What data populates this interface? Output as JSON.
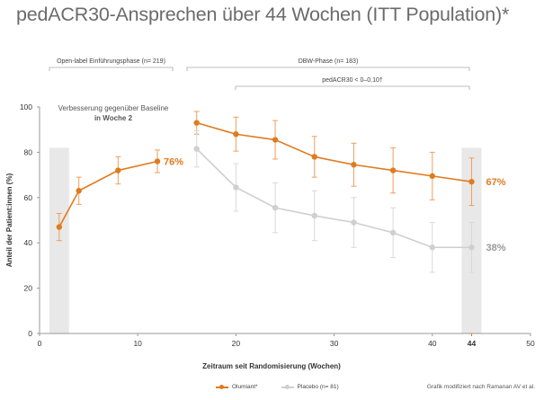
{
  "title": "pedACR30-Ansprechen über 44 Wochen (ITT Population)*",
  "colors": {
    "olumiant": "#e07b20",
    "placebo": "#cfcfcf",
    "shade": "#e8e8e8",
    "axis": "#999999",
    "bracket": "#aaaaaa"
  },
  "brackets": {
    "open_label": "Open-label Einführungsphase (n= 219)",
    "dbw_phase": "DBW-Phase (n= 183)",
    "pvalue": "pedACR30 < 0–0.10†"
  },
  "annotation": {
    "line1": "Verbesserung gegenüber Baseline",
    "line2": "in Woche 2"
  },
  "legend": {
    "olumiant": "Olumiant*",
    "placebo": "Placebo (n= 81)"
  },
  "source": "Grafik modifiziert nach Ramanan AV et al.",
  "chart_data": {
    "type": "line",
    "xlabel": "Zeitraum seit Randomisierung (Wochen)",
    "ylabel": "Anteil der Patient:innen (%)",
    "xlim": [
      0,
      50
    ],
    "ylim": [
      0,
      100
    ],
    "xticks": [
      0,
      10,
      20,
      30,
      40,
      50
    ],
    "yticks": [
      0,
      20,
      40,
      60,
      80,
      100
    ],
    "highlight_tick": {
      "value": 44,
      "label": "44"
    },
    "shaded_x": [
      2,
      44
    ],
    "series": [
      {
        "name": "Olumiant*",
        "phase": "open-label",
        "x": [
          2,
          4,
          8,
          12
        ],
        "y": [
          47,
          63,
          72,
          76
        ],
        "err": [
          6,
          6,
          6,
          5
        ],
        "end_label": "76%"
      },
      {
        "name": "Olumiant*",
        "phase": "dbw",
        "x": [
          16,
          20,
          24,
          28,
          32,
          36,
          40,
          44
        ],
        "y": [
          93,
          88,
          85.5,
          78,
          74.5,
          72,
          69.5,
          67
        ],
        "err": [
          5,
          7.5,
          8.5,
          9,
          9.5,
          10,
          10.5,
          10.5
        ],
        "end_label": "67%"
      },
      {
        "name": "Placebo (n= 81)",
        "phase": "dbw",
        "x": [
          16,
          20,
          24,
          28,
          32,
          36,
          40,
          44
        ],
        "y": [
          81.5,
          64.5,
          55.5,
          52,
          49,
          44.5,
          38,
          38
        ],
        "err": [
          8,
          10.5,
          11,
          11,
          11,
          11,
          11,
          11
        ],
        "end_label": "38%"
      }
    ]
  }
}
